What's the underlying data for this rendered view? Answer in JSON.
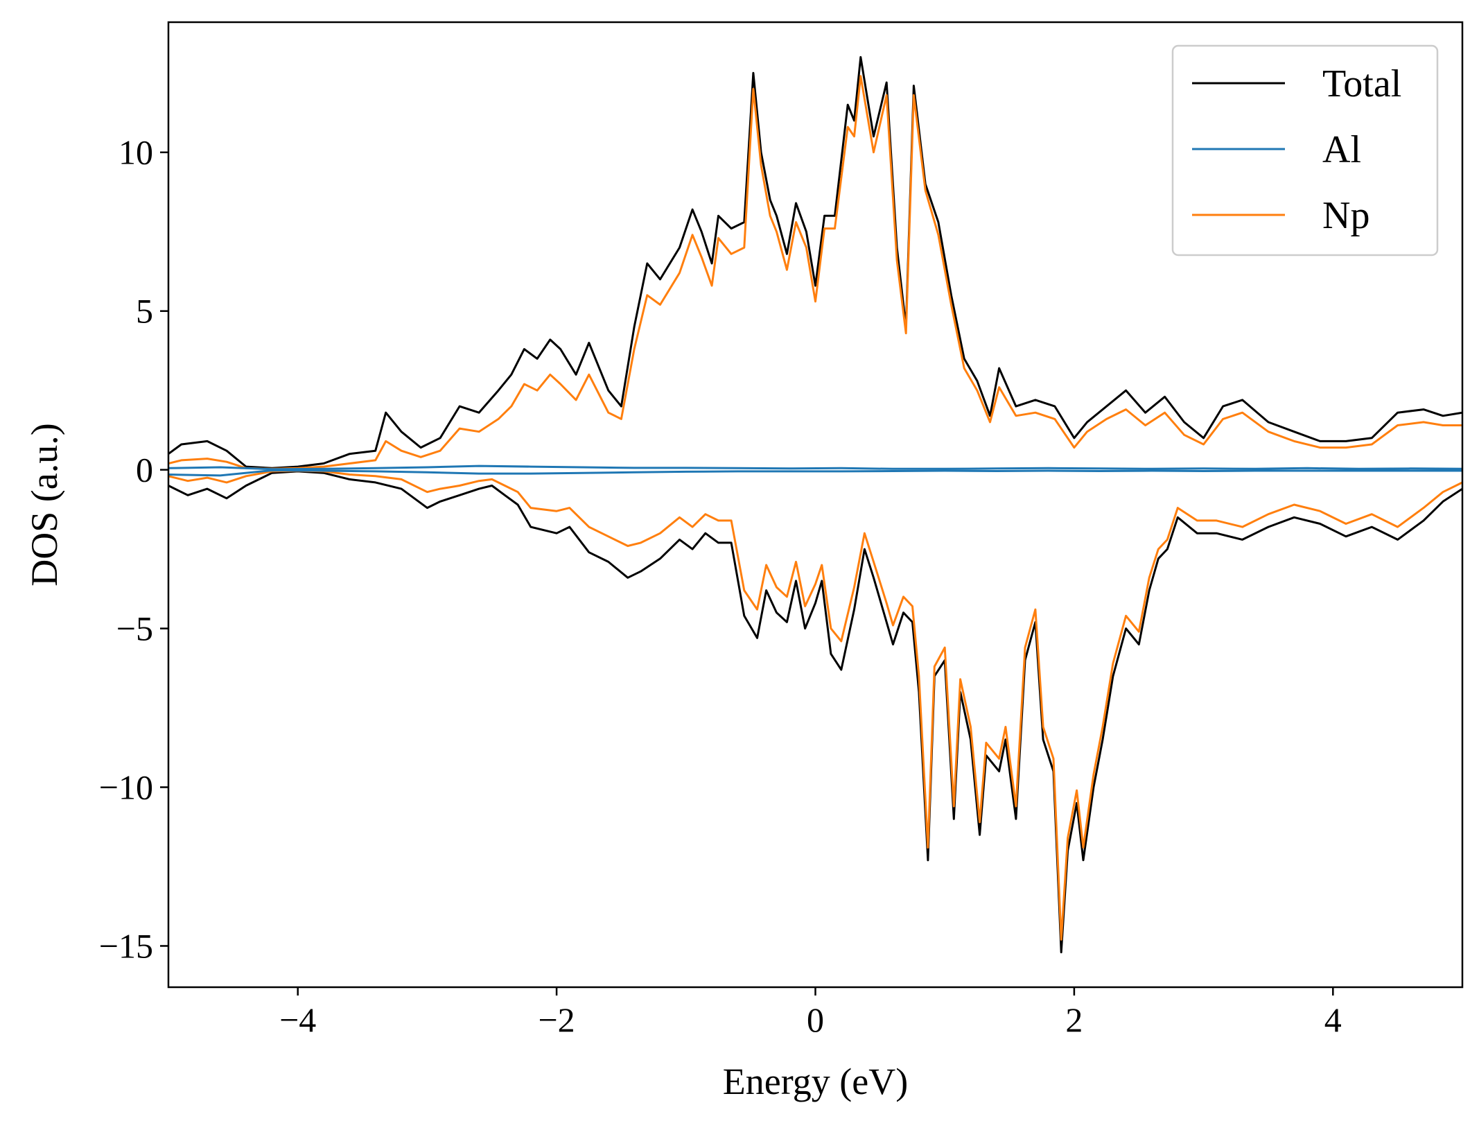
{
  "chart_data": {
    "type": "line",
    "title": "",
    "xlabel": "Energy (eV)",
    "ylabel": "DOS (a.u.)",
    "xlim": [
      -5,
      5
    ],
    "ylim": [
      -16.3,
      14.1
    ],
    "xticks": [
      -4,
      -2,
      0,
      2,
      4
    ],
    "yticks": [
      -15,
      -10,
      -5,
      0,
      5,
      10
    ],
    "xtick_labels": [
      "−4",
      "−2",
      "0",
      "2",
      "4"
    ],
    "ytick_labels": [
      "−15",
      "−10",
      "−5",
      "0",
      "5",
      "10"
    ],
    "grid": false,
    "legend_position": "top-right",
    "series": [
      {
        "name": "Total",
        "color": "#000000",
        "spin_up": {
          "x": [
            -5.0,
            -4.9,
            -4.7,
            -4.55,
            -4.4,
            -4.2,
            -4.0,
            -3.8,
            -3.6,
            -3.4,
            -3.32,
            -3.2,
            -3.05,
            -2.9,
            -2.75,
            -2.6,
            -2.45,
            -2.35,
            -2.25,
            -2.15,
            -2.05,
            -1.97,
            -1.85,
            -1.75,
            -1.6,
            -1.5,
            -1.4,
            -1.3,
            -1.2,
            -1.05,
            -0.95,
            -0.88,
            -0.8,
            -0.75,
            -0.65,
            -0.55,
            -0.48,
            -0.42,
            -0.35,
            -0.3,
            -0.22,
            -0.15,
            -0.07,
            0.0,
            0.07,
            0.15,
            0.25,
            0.3,
            0.35,
            0.45,
            0.55,
            0.63,
            0.7,
            0.76,
            0.85,
            0.95,
            1.05,
            1.15,
            1.25,
            1.35,
            1.42,
            1.55,
            1.7,
            1.85,
            2.0,
            2.1,
            2.25,
            2.4,
            2.55,
            2.7,
            2.85,
            3.0,
            3.15,
            3.3,
            3.5,
            3.7,
            3.9,
            4.1,
            4.3,
            4.5,
            4.7,
            4.85,
            5.0
          ],
          "y": [
            0.5,
            0.8,
            0.9,
            0.6,
            0.1,
            0.05,
            0.1,
            0.2,
            0.5,
            0.6,
            1.8,
            1.2,
            0.7,
            1.0,
            2.0,
            1.8,
            2.5,
            3.0,
            3.8,
            3.5,
            4.1,
            3.8,
            3.0,
            4.0,
            2.5,
            2.0,
            4.5,
            6.5,
            6.0,
            7.0,
            8.2,
            7.5,
            6.5,
            8.0,
            7.6,
            7.8,
            12.5,
            10.0,
            8.5,
            8.0,
            6.8,
            8.4,
            7.5,
            5.8,
            8.0,
            8.0,
            11.5,
            11.0,
            13.0,
            10.5,
            12.2,
            7.0,
            4.5,
            12.1,
            9.0,
            7.8,
            5.5,
            3.5,
            2.8,
            1.7,
            3.2,
            2.0,
            2.2,
            2.0,
            1.0,
            1.5,
            2.0,
            2.5,
            1.8,
            2.3,
            1.5,
            1.0,
            2.0,
            2.2,
            1.5,
            1.2,
            0.9,
            0.9,
            1.0,
            1.8,
            1.9,
            1.7,
            1.8
          ]
        },
        "spin_down": {
          "x": [
            -5.0,
            -4.85,
            -4.7,
            -4.55,
            -4.4,
            -4.2,
            -4.0,
            -3.8,
            -3.6,
            -3.4,
            -3.2,
            -3.0,
            -2.9,
            -2.75,
            -2.6,
            -2.5,
            -2.4,
            -2.3,
            -2.2,
            -2.0,
            -1.9,
            -1.75,
            -1.6,
            -1.45,
            -1.35,
            -1.2,
            -1.05,
            -0.95,
            -0.85,
            -0.75,
            -0.65,
            -0.55,
            -0.45,
            -0.38,
            -0.3,
            -0.22,
            -0.15,
            -0.08,
            0.0,
            0.05,
            0.12,
            0.2,
            0.3,
            0.38,
            0.45,
            0.55,
            0.6,
            0.68,
            0.75,
            0.8,
            0.87,
            0.92,
            1.0,
            1.07,
            1.12,
            1.2,
            1.27,
            1.32,
            1.42,
            1.47,
            1.55,
            1.62,
            1.7,
            1.76,
            1.84,
            1.9,
            1.95,
            2.02,
            2.07,
            2.15,
            2.22,
            2.3,
            2.4,
            2.5,
            2.58,
            2.65,
            2.72,
            2.8,
            2.95,
            3.1,
            3.3,
            3.5,
            3.7,
            3.9,
            4.1,
            4.3,
            4.5,
            4.7,
            4.85,
            5.0
          ],
          "y": [
            -0.5,
            -0.8,
            -0.6,
            -0.9,
            -0.5,
            -0.1,
            -0.05,
            -0.1,
            -0.3,
            -0.4,
            -0.6,
            -1.2,
            -1.0,
            -0.8,
            -0.6,
            -0.5,
            -0.8,
            -1.1,
            -1.8,
            -2.0,
            -1.8,
            -2.6,
            -2.9,
            -3.4,
            -3.2,
            -2.8,
            -2.2,
            -2.5,
            -2.0,
            -2.3,
            -2.3,
            -4.6,
            -5.3,
            -3.8,
            -4.5,
            -4.8,
            -3.5,
            -5.0,
            -4.2,
            -3.5,
            -5.8,
            -6.3,
            -4.4,
            -2.5,
            -3.4,
            -4.8,
            -5.5,
            -4.5,
            -4.8,
            -7.0,
            -12.3,
            -6.5,
            -6.0,
            -11.0,
            -7.0,
            -8.5,
            -11.5,
            -9.0,
            -9.5,
            -8.5,
            -11.0,
            -6.0,
            -4.8,
            -8.5,
            -9.5,
            -15.2,
            -12.0,
            -10.5,
            -12.3,
            -10.0,
            -8.5,
            -6.5,
            -5.0,
            -5.5,
            -3.8,
            -2.8,
            -2.5,
            -1.5,
            -2.0,
            -2.0,
            -2.2,
            -1.8,
            -1.5,
            -1.7,
            -2.1,
            -1.8,
            -2.2,
            -1.6,
            -1.0,
            -0.6
          ]
        }
      },
      {
        "name": "Al",
        "color": "#1f77b4",
        "spin_up": {
          "x": [
            -5.0,
            -4.6,
            -4.2,
            -3.8,
            -3.4,
            -3.0,
            -2.6,
            -2.2,
            -1.8,
            -1.4,
            -1.0,
            -0.6,
            -0.2,
            0.2,
            0.6,
            1.0,
            1.4,
            1.8,
            2.2,
            2.6,
            3.0,
            3.4,
            3.8,
            4.2,
            4.6,
            5.0
          ],
          "y": [
            0.05,
            0.08,
            0.02,
            0.03,
            0.05,
            0.08,
            0.12,
            0.1,
            0.08,
            0.06,
            0.06,
            0.05,
            0.04,
            0.05,
            0.03,
            0.03,
            0.04,
            0.05,
            0.04,
            0.03,
            0.04,
            0.03,
            0.05,
            0.03,
            0.04,
            0.03
          ]
        },
        "spin_down": {
          "x": [
            -5.0,
            -4.6,
            -4.2,
            -3.8,
            -3.4,
            -3.0,
            -2.6,
            -2.2,
            -1.8,
            -1.4,
            -1.0,
            -0.6,
            -0.2,
            0.2,
            0.6,
            1.0,
            1.4,
            1.8,
            2.2,
            2.6,
            3.0,
            3.4,
            3.8,
            4.2,
            4.6,
            5.0
          ],
          "y": [
            -0.15,
            -0.18,
            -0.02,
            -0.03,
            -0.05,
            -0.08,
            -0.12,
            -0.12,
            -0.1,
            -0.08,
            -0.06,
            -0.05,
            -0.05,
            -0.05,
            -0.04,
            -0.03,
            -0.04,
            -0.03,
            -0.04,
            -0.03,
            -0.04,
            -0.03,
            -0.03,
            -0.03,
            -0.03,
            -0.03
          ]
        }
      },
      {
        "name": "Np",
        "color": "#ff7f0e",
        "spin_up": {
          "x": [
            -5.0,
            -4.9,
            -4.7,
            -4.55,
            -4.4,
            -4.2,
            -4.0,
            -3.8,
            -3.6,
            -3.4,
            -3.32,
            -3.2,
            -3.05,
            -2.9,
            -2.75,
            -2.6,
            -2.45,
            -2.35,
            -2.25,
            -2.15,
            -2.05,
            -1.97,
            -1.85,
            -1.75,
            -1.6,
            -1.5,
            -1.4,
            -1.3,
            -1.2,
            -1.05,
            -0.95,
            -0.88,
            -0.8,
            -0.75,
            -0.65,
            -0.55,
            -0.48,
            -0.42,
            -0.35,
            -0.3,
            -0.22,
            -0.15,
            -0.07,
            0.0,
            0.07,
            0.15,
            0.25,
            0.3,
            0.35,
            0.45,
            0.55,
            0.63,
            0.7,
            0.76,
            0.85,
            0.95,
            1.05,
            1.15,
            1.25,
            1.35,
            1.42,
            1.55,
            1.7,
            1.85,
            2.0,
            2.1,
            2.25,
            2.4,
            2.55,
            2.7,
            2.85,
            3.0,
            3.15,
            3.3,
            3.5,
            3.7,
            3.9,
            4.1,
            4.3,
            4.5,
            4.7,
            4.85,
            5.0
          ],
          "y": [
            0.2,
            0.3,
            0.35,
            0.25,
            0.05,
            0.03,
            0.05,
            0.1,
            0.2,
            0.3,
            0.9,
            0.6,
            0.4,
            0.6,
            1.3,
            1.2,
            1.6,
            2.0,
            2.7,
            2.5,
            3.0,
            2.7,
            2.2,
            3.0,
            1.8,
            1.6,
            3.8,
            5.5,
            5.2,
            6.2,
            7.4,
            6.7,
            5.8,
            7.3,
            6.8,
            7.0,
            12.0,
            9.6,
            8.0,
            7.5,
            6.3,
            7.8,
            7.0,
            5.3,
            7.6,
            7.6,
            10.8,
            10.5,
            12.4,
            10.0,
            11.8,
            6.6,
            4.3,
            11.8,
            8.8,
            7.4,
            5.2,
            3.2,
            2.5,
            1.5,
            2.6,
            1.7,
            1.8,
            1.6,
            0.7,
            1.2,
            1.6,
            1.9,
            1.4,
            1.8,
            1.1,
            0.8,
            1.6,
            1.8,
            1.2,
            0.9,
            0.7,
            0.7,
            0.8,
            1.4,
            1.5,
            1.4,
            1.4
          ]
        },
        "spin_down": {
          "x": [
            -5.0,
            -4.85,
            -4.7,
            -4.55,
            -4.4,
            -4.2,
            -4.0,
            -3.8,
            -3.6,
            -3.4,
            -3.2,
            -3.0,
            -2.9,
            -2.75,
            -2.6,
            -2.5,
            -2.4,
            -2.3,
            -2.2,
            -2.0,
            -1.9,
            -1.75,
            -1.6,
            -1.45,
            -1.35,
            -1.2,
            -1.05,
            -0.95,
            -0.85,
            -0.75,
            -0.65,
            -0.55,
            -0.45,
            -0.38,
            -0.3,
            -0.22,
            -0.15,
            -0.08,
            0.0,
            0.05,
            0.12,
            0.2,
            0.3,
            0.38,
            0.45,
            0.55,
            0.6,
            0.68,
            0.75,
            0.8,
            0.87,
            0.92,
            1.0,
            1.07,
            1.12,
            1.2,
            1.27,
            1.32,
            1.42,
            1.47,
            1.55,
            1.62,
            1.7,
            1.76,
            1.84,
            1.9,
            1.95,
            2.02,
            2.07,
            2.15,
            2.22,
            2.3,
            2.4,
            2.5,
            2.58,
            2.65,
            2.72,
            2.8,
            2.95,
            3.1,
            3.3,
            3.5,
            3.7,
            3.9,
            4.1,
            4.3,
            4.5,
            4.7,
            4.85,
            5.0
          ],
          "y": [
            -0.2,
            -0.35,
            -0.25,
            -0.4,
            -0.2,
            -0.05,
            -0.03,
            -0.05,
            -0.15,
            -0.2,
            -0.3,
            -0.7,
            -0.6,
            -0.5,
            -0.35,
            -0.3,
            -0.5,
            -0.7,
            -1.2,
            -1.3,
            -1.2,
            -1.8,
            -2.1,
            -2.4,
            -2.3,
            -2.0,
            -1.5,
            -1.8,
            -1.4,
            -1.6,
            -1.6,
            -3.8,
            -4.4,
            -3.0,
            -3.7,
            -4.0,
            -2.9,
            -4.3,
            -3.6,
            -3.0,
            -5.0,
            -5.4,
            -3.7,
            -2.0,
            -2.9,
            -4.2,
            -4.9,
            -4.0,
            -4.3,
            -6.5,
            -11.9,
            -6.2,
            -5.6,
            -10.6,
            -6.6,
            -8.1,
            -11.1,
            -8.6,
            -9.1,
            -8.1,
            -10.6,
            -5.6,
            -4.4,
            -8.1,
            -9.1,
            -14.8,
            -11.6,
            -10.1,
            -11.9,
            -9.6,
            -8.1,
            -6.1,
            -4.6,
            -5.1,
            -3.4,
            -2.5,
            -2.2,
            -1.2,
            -1.6,
            -1.6,
            -1.8,
            -1.4,
            -1.1,
            -1.3,
            -1.7,
            -1.4,
            -1.8,
            -1.2,
            -0.7,
            -0.4
          ]
        }
      }
    ]
  }
}
